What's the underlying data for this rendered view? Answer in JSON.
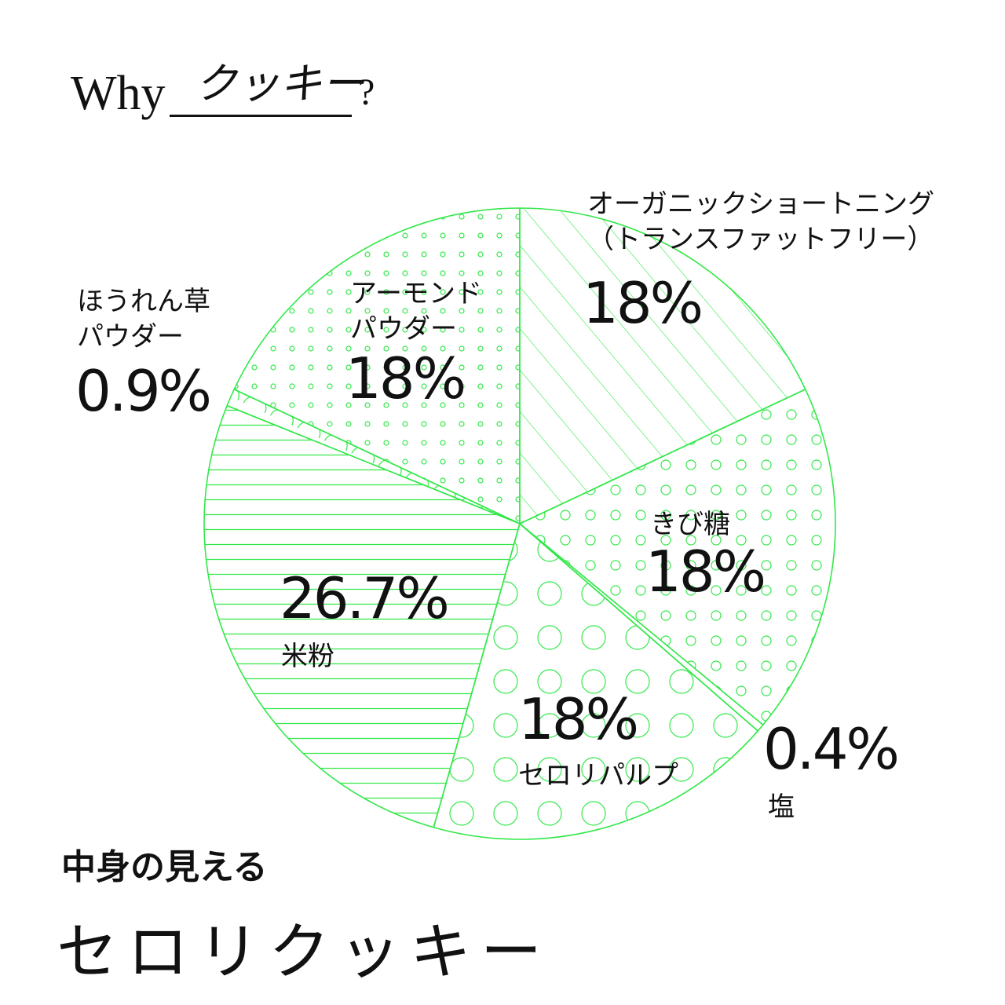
{
  "header": {
    "prefix": "Why",
    "word": "クッキー",
    "suffix": "?"
  },
  "colors": {
    "accent": "#33e84a",
    "text": "#111111"
  },
  "chart_data": {
    "type": "pie",
    "title": "",
    "start_angle_deg": 0,
    "direction": "clockwise",
    "slices": [
      {
        "label": "オーガニックショートニング\n（トランスファットフリー）",
        "value": 18,
        "display": "18%",
        "pattern": "diagonal"
      },
      {
        "label": "きび糖",
        "value": 18,
        "display": "18%",
        "pattern": "small-circles"
      },
      {
        "label": "塩",
        "value": 0.4,
        "display": "0.4%",
        "pattern": "none"
      },
      {
        "label": "セロリパルプ",
        "value": 18,
        "display": "18%",
        "pattern": "large-circles"
      },
      {
        "label": "米粉",
        "value": 26.7,
        "display": "26.7%",
        "pattern": "horizontal"
      },
      {
        "label": "ほうれん草\nパウダー",
        "value": 0.9,
        "display": "0.9%",
        "pattern": "arcs"
      },
      {
        "label": "アーモンド\nパウダー",
        "value": 18,
        "display": "18%",
        "pattern": "dots"
      }
    ]
  },
  "footer": {
    "subtitle": "中身の見える",
    "title": "セロリクッキー"
  }
}
